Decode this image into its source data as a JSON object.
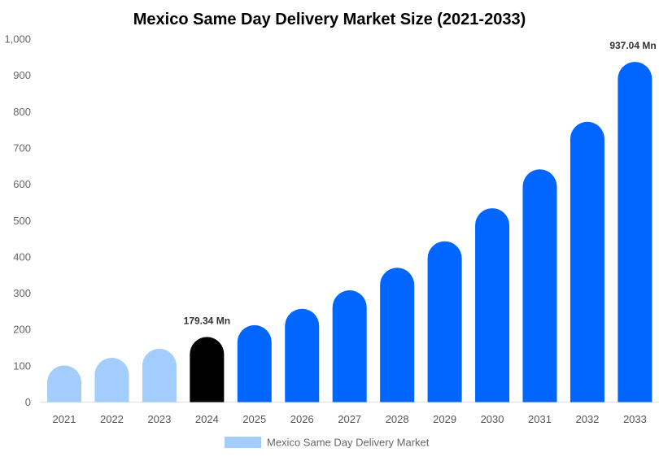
{
  "chart_data": {
    "type": "bar",
    "title": "Mexico Same Day Delivery Market Size (2021-2033)",
    "xlabel": "",
    "ylabel": "",
    "ylim": [
      0,
      1000
    ],
    "yticks": [
      "0",
      "100",
      "200",
      "300",
      "400",
      "500",
      "600",
      "700",
      "800",
      "900",
      "1,000"
    ],
    "grid": false,
    "legend_position": "bottom",
    "categories": [
      "2021",
      "2022",
      "2023",
      "2024",
      "2025",
      "2026",
      "2027",
      "2028",
      "2029",
      "2030",
      "2031",
      "2032",
      "2033"
    ],
    "series": [
      {
        "name": "Mexico Same Day Delivery Market",
        "values": [
          101,
          122,
          147,
          179.34,
          212,
          257,
          308,
          370,
          443,
          534,
          641,
          772,
          937.04
        ]
      }
    ],
    "bar_colors": [
      "#a3cdfc",
      "#a3cdfc",
      "#a3cdfc",
      "#000000",
      "#0066ff",
      "#0066ff",
      "#0066ff",
      "#0066ff",
      "#0066ff",
      "#0066ff",
      "#0066ff",
      "#0066ff",
      "#0066ff"
    ],
    "legend_color": "#a3cdfc",
    "data_labels": [
      {
        "category": "2024",
        "text": "179.34 Mn"
      },
      {
        "category": "2033",
        "text": "937.04 Mn"
      }
    ]
  }
}
